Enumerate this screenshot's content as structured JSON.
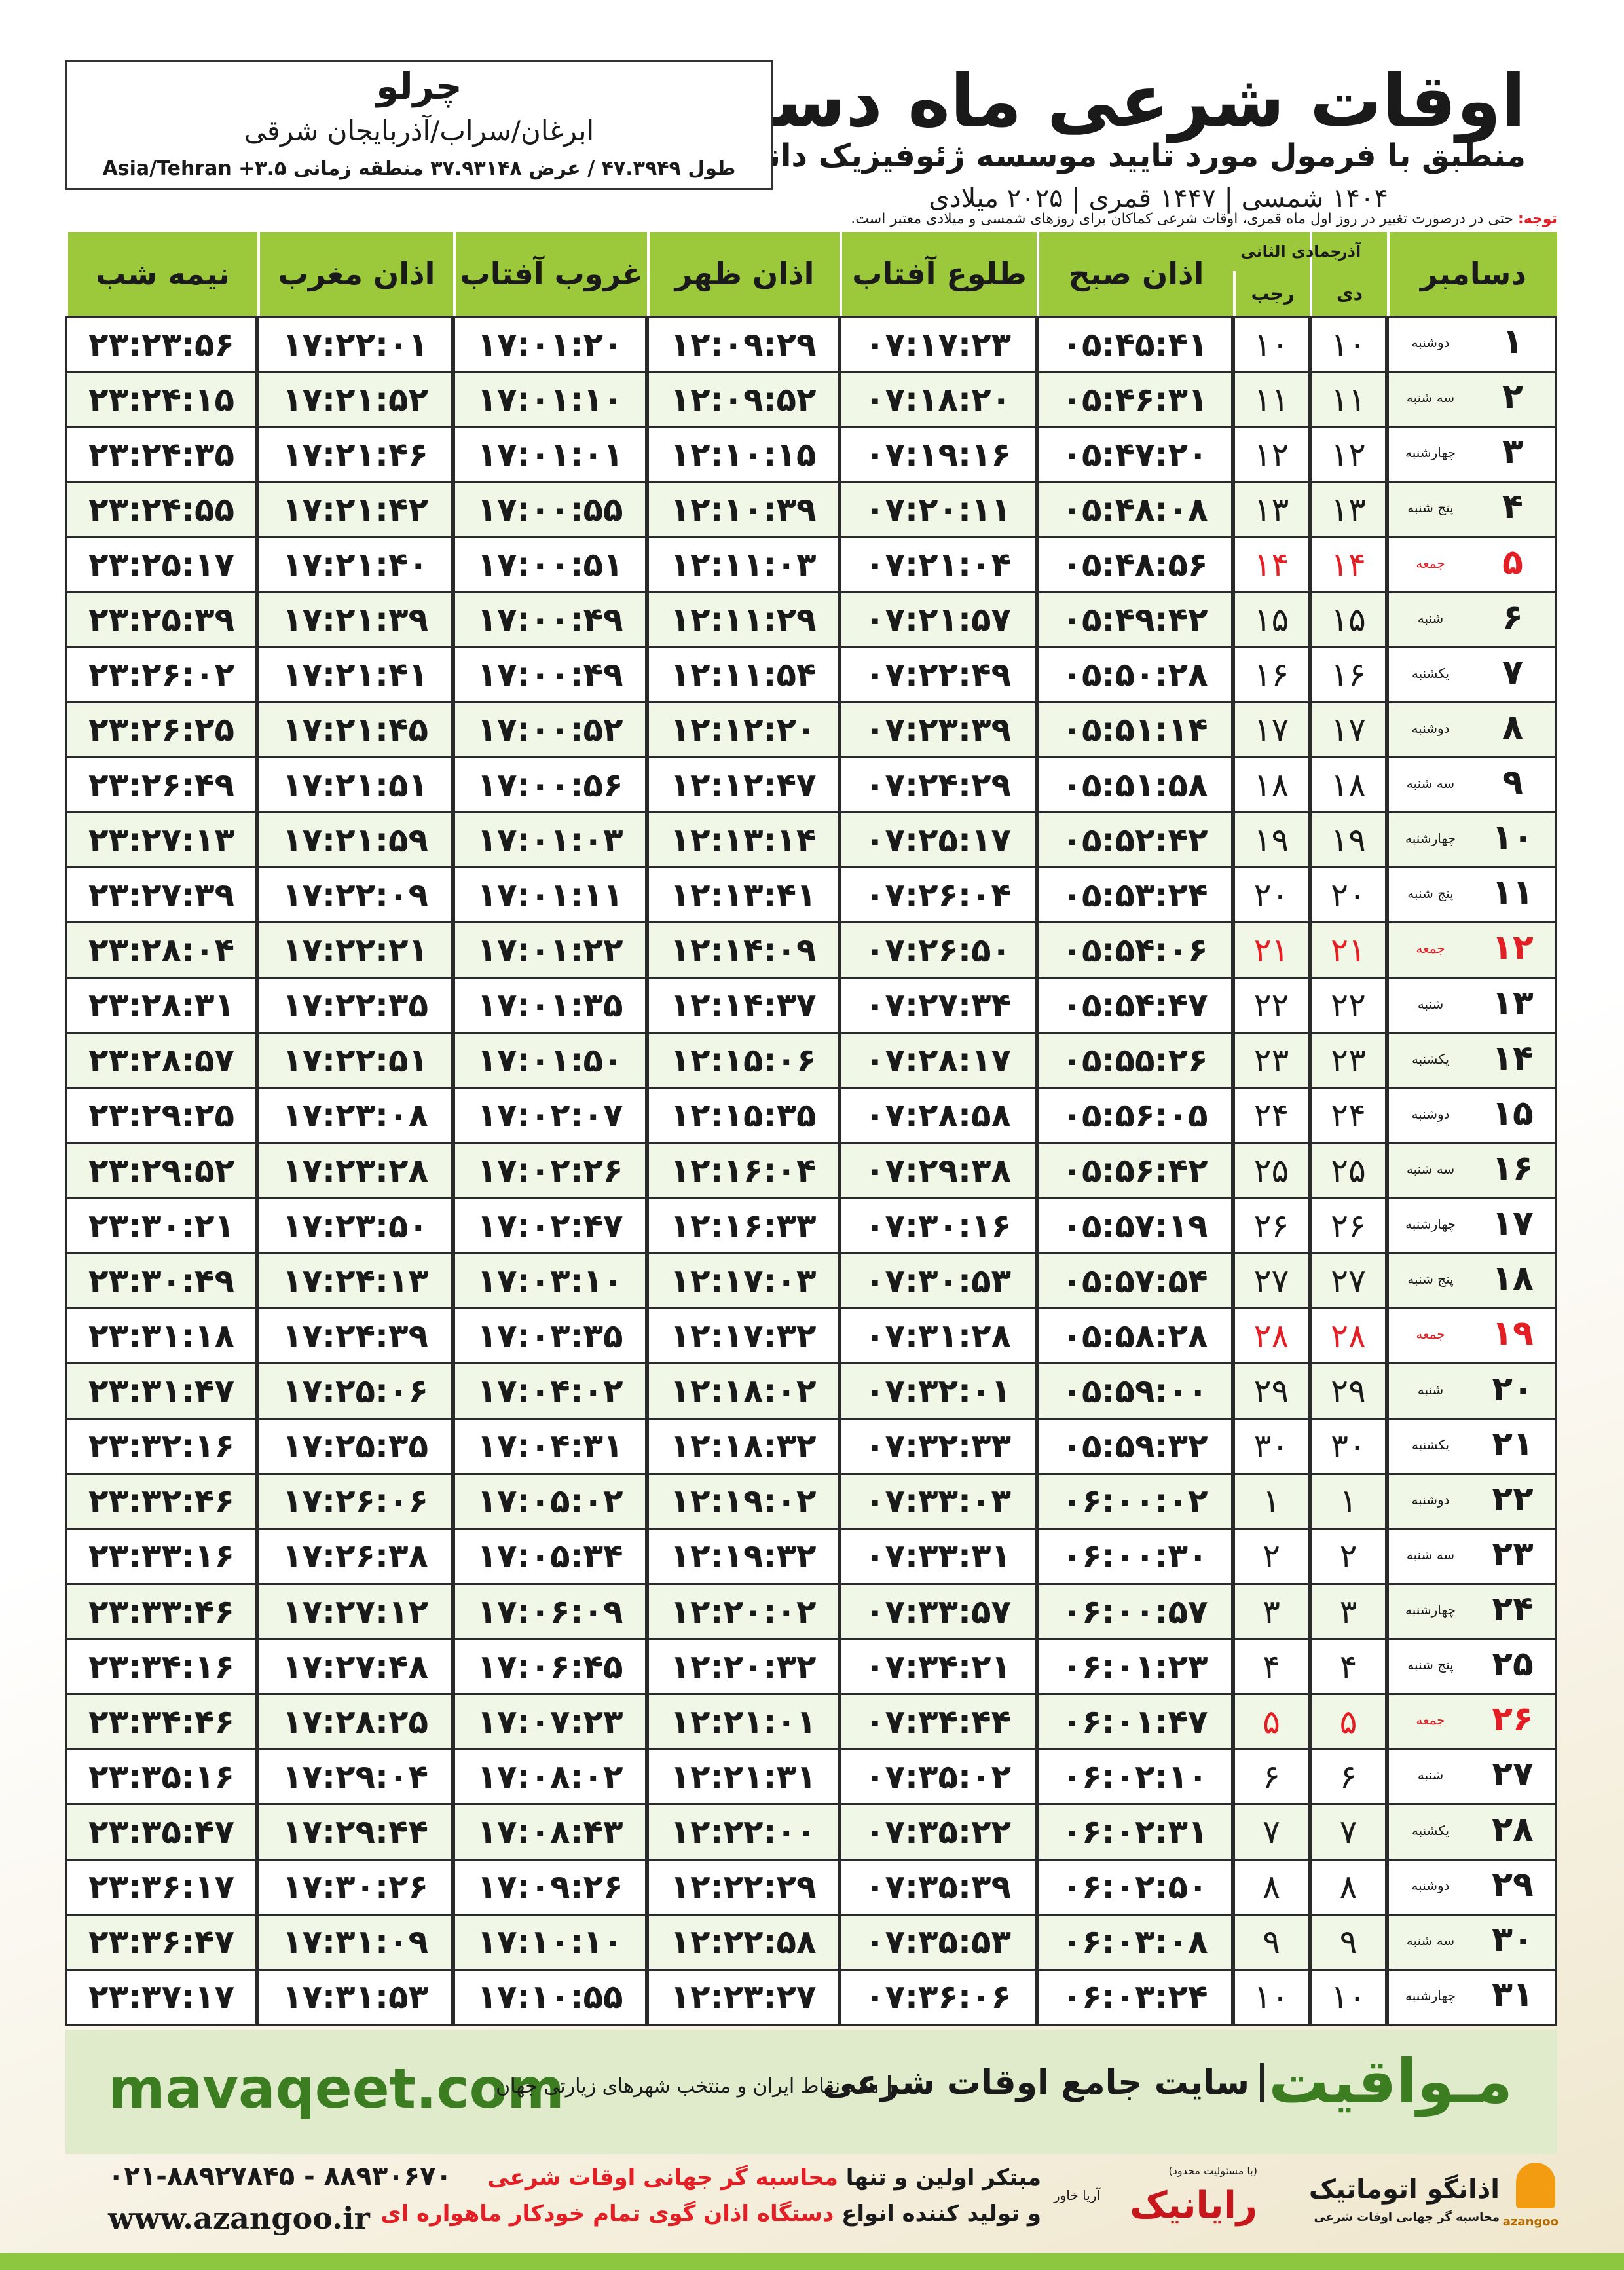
{
  "header": {
    "title": "اوقات شرعی ماه دسامبر",
    "subtitle": "منطبق با فرمول مورد تایید موسسه ژئوفیزیک دانشگاه تهران",
    "dates": "۱۴۰۴ شمسی | ۱۴۴۷ قمری | ۲۰۲۵ میلادی",
    "city": "چرلو",
    "region": "ابرغان/سراب/آذربایجان شرقی",
    "coords": "طول ۴۷.۳۹۴۹ / عرض ۳۷.۹۳۱۴۸ منطقه زمانی ۳.۵+ Asia/Tehran"
  },
  "note": {
    "label": "توجه:",
    "text": "حتی در درصورت تغییر در روز اول ماه قمری، اوقات شرعی کماکان برای روزهای شمسی و میلادی معتبر است."
  },
  "table": {
    "header_color": "#9cc83c",
    "holiday_color": "#e31e24",
    "columns": [
      "دسامبر",
      "آذر",
      "دی",
      "جمادی الثانی",
      "رجب",
      "اذان صبح",
      "طلوع آفتاب",
      "اذان ظهر",
      "غروب آفتاب",
      "اذان مغرب",
      "نیمه شب"
    ],
    "rows": [
      {
        "cells": [
          "۱",
          "دوشنبه",
          "۱۰",
          "۱۰",
          "۰۵:۴۵:۴۱",
          "۰۷:۱۷:۲۳",
          "۱۲:۰۹:۲۹",
          "۱۷:۰۱:۲۰",
          "۱۷:۲۲:۰۱",
          "۲۳:۲۳:۵۶"
        ]
      },
      {
        "cells": [
          "۲",
          "سه شنبه",
          "۱۱",
          "۱۱",
          "۰۵:۴۶:۳۱",
          "۰۷:۱۸:۲۰",
          "۱۲:۰۹:۵۲",
          "۱۷:۰۱:۱۰",
          "۱۷:۲۱:۵۲",
          "۲۳:۲۴:۱۵"
        ]
      },
      {
        "cells": [
          "۳",
          "چهارشنبه",
          "۱۲",
          "۱۲",
          "۰۵:۴۷:۲۰",
          "۰۷:۱۹:۱۶",
          "۱۲:۱۰:۱۵",
          "۱۷:۰۱:۰۱",
          "۱۷:۲۱:۴۶",
          "۲۳:۲۴:۳۵"
        ]
      },
      {
        "cells": [
          "۴",
          "پنج شنبه",
          "۱۳",
          "۱۳",
          "۰۵:۴۸:۰۸",
          "۰۷:۲۰:۱۱",
          "۱۲:۱۰:۳۹",
          "۱۷:۰۰:۵۵",
          "۱۷:۲۱:۴۲",
          "۲۳:۲۴:۵۵"
        ]
      },
      {
        "cells": [
          "۵",
          "جمعه",
          "۱۴",
          "۱۴",
          "۰۵:۴۸:۵۶",
          "۰۷:۲۱:۰۴",
          "۱۲:۱۱:۰۳",
          "۱۷:۰۰:۵۱",
          "۱۷:۲۱:۴۰",
          "۲۳:۲۵:۱۷"
        ],
        "holiday": true
      },
      {
        "cells": [
          "۶",
          "شنبه",
          "۱۵",
          "۱۵",
          "۰۵:۴۹:۴۲",
          "۰۷:۲۱:۵۷",
          "۱۲:۱۱:۲۹",
          "۱۷:۰۰:۴۹",
          "۱۷:۲۱:۳۹",
          "۲۳:۲۵:۳۹"
        ]
      },
      {
        "cells": [
          "۷",
          "یکشنبه",
          "۱۶",
          "۱۶",
          "۰۵:۵۰:۲۸",
          "۰۷:۲۲:۴۹",
          "۱۲:۱۱:۵۴",
          "۱۷:۰۰:۴۹",
          "۱۷:۲۱:۴۱",
          "۲۳:۲۶:۰۲"
        ]
      },
      {
        "cells": [
          "۸",
          "دوشنبه",
          "۱۷",
          "۱۷",
          "۰۵:۵۱:۱۴",
          "۰۷:۲۳:۳۹",
          "۱۲:۱۲:۲۰",
          "۱۷:۰۰:۵۲",
          "۱۷:۲۱:۴۵",
          "۲۳:۲۶:۲۵"
        ]
      },
      {
        "cells": [
          "۹",
          "سه شنبه",
          "۱۸",
          "۱۸",
          "۰۵:۵۱:۵۸",
          "۰۷:۲۴:۲۹",
          "۱۲:۱۲:۴۷",
          "۱۷:۰۰:۵۶",
          "۱۷:۲۱:۵۱",
          "۲۳:۲۶:۴۹"
        ]
      },
      {
        "cells": [
          "۱۰",
          "چهارشنبه",
          "۱۹",
          "۱۹",
          "۰۵:۵۲:۴۲",
          "۰۷:۲۵:۱۷",
          "۱۲:۱۳:۱۴",
          "۱۷:۰۱:۰۳",
          "۱۷:۲۱:۵۹",
          "۲۳:۲۷:۱۳"
        ]
      },
      {
        "cells": [
          "۱۱",
          "پنج شنبه",
          "۲۰",
          "۲۰",
          "۰۵:۵۳:۲۴",
          "۰۷:۲۶:۰۴",
          "۱۲:۱۳:۴۱",
          "۱۷:۰۱:۱۱",
          "۱۷:۲۲:۰۹",
          "۲۳:۲۷:۳۹"
        ]
      },
      {
        "cells": [
          "۱۲",
          "جمعه",
          "۲۱",
          "۲۱",
          "۰۵:۵۴:۰۶",
          "۰۷:۲۶:۵۰",
          "۱۲:۱۴:۰۹",
          "۱۷:۰۱:۲۲",
          "۱۷:۲۲:۲۱",
          "۲۳:۲۸:۰۴"
        ],
        "holiday": true
      },
      {
        "cells": [
          "۱۳",
          "شنبه",
          "۲۲",
          "۲۲",
          "۰۵:۵۴:۴۷",
          "۰۷:۲۷:۳۴",
          "۱۲:۱۴:۳۷",
          "۱۷:۰۱:۳۵",
          "۱۷:۲۲:۳۵",
          "۲۳:۲۸:۳۱"
        ]
      },
      {
        "cells": [
          "۱۴",
          "یکشنبه",
          "۲۳",
          "۲۳",
          "۰۵:۵۵:۲۶",
          "۰۷:۲۸:۱۷",
          "۱۲:۱۵:۰۶",
          "۱۷:۰۱:۵۰",
          "۱۷:۲۲:۵۱",
          "۲۳:۲۸:۵۷"
        ]
      },
      {
        "cells": [
          "۱۵",
          "دوشنبه",
          "۲۴",
          "۲۴",
          "۰۵:۵۶:۰۵",
          "۰۷:۲۸:۵۸",
          "۱۲:۱۵:۳۵",
          "۱۷:۰۲:۰۷",
          "۱۷:۲۳:۰۸",
          "۲۳:۲۹:۲۵"
        ]
      },
      {
        "cells": [
          "۱۶",
          "سه شنبه",
          "۲۵",
          "۲۵",
          "۰۵:۵۶:۴۲",
          "۰۷:۲۹:۳۸",
          "۱۲:۱۶:۰۴",
          "۱۷:۰۲:۲۶",
          "۱۷:۲۳:۲۸",
          "۲۳:۲۹:۵۲"
        ]
      },
      {
        "cells": [
          "۱۷",
          "چهارشنبه",
          "۲۶",
          "۲۶",
          "۰۵:۵۷:۱۹",
          "۰۷:۳۰:۱۶",
          "۱۲:۱۶:۳۳",
          "۱۷:۰۲:۴۷",
          "۱۷:۲۳:۵۰",
          "۲۳:۳۰:۲۱"
        ]
      },
      {
        "cells": [
          "۱۸",
          "پنج شنبه",
          "۲۷",
          "۲۷",
          "۰۵:۵۷:۵۴",
          "۰۷:۳۰:۵۳",
          "۱۲:۱۷:۰۳",
          "۱۷:۰۳:۱۰",
          "۱۷:۲۴:۱۳",
          "۲۳:۳۰:۴۹"
        ]
      },
      {
        "cells": [
          "۱۹",
          "جمعه",
          "۲۸",
          "۲۸",
          "۰۵:۵۸:۲۸",
          "۰۷:۳۱:۲۸",
          "۱۲:۱۷:۳۲",
          "۱۷:۰۳:۳۵",
          "۱۷:۲۴:۳۹",
          "۲۳:۳۱:۱۸"
        ],
        "holiday": true
      },
      {
        "cells": [
          "۲۰",
          "شنبه",
          "۲۹",
          "۲۹",
          "۰۵:۵۹:۰۰",
          "۰۷:۳۲:۰۱",
          "۱۲:۱۸:۰۲",
          "۱۷:۰۴:۰۲",
          "۱۷:۲۵:۰۶",
          "۲۳:۳۱:۴۷"
        ]
      },
      {
        "cells": [
          "۲۱",
          "یکشنبه",
          "۳۰",
          "۳۰",
          "۰۵:۵۹:۳۲",
          "۰۷:۳۲:۳۳",
          "۱۲:۱۸:۳۲",
          "۱۷:۰۴:۳۱",
          "۱۷:۲۵:۳۵",
          "۲۳:۳۲:۱۶"
        ]
      },
      {
        "cells": [
          "۲۲",
          "دوشنبه",
          "۱",
          "۱",
          "۰۶:۰۰:۰۲",
          "۰۷:۳۳:۰۳",
          "۱۲:۱۹:۰۲",
          "۱۷:۰۵:۰۲",
          "۱۷:۲۶:۰۶",
          "۲۳:۳۲:۴۶"
        ]
      },
      {
        "cells": [
          "۲۳",
          "سه شنبه",
          "۲",
          "۲",
          "۰۶:۰۰:۳۰",
          "۰۷:۳۳:۳۱",
          "۱۲:۱۹:۳۲",
          "۱۷:۰۵:۳۴",
          "۱۷:۲۶:۳۸",
          "۲۳:۳۳:۱۶"
        ]
      },
      {
        "cells": [
          "۲۴",
          "چهارشنبه",
          "۳",
          "۳",
          "۰۶:۰۰:۵۷",
          "۰۷:۳۳:۵۷",
          "۱۲:۲۰:۰۲",
          "۱۷:۰۶:۰۹",
          "۱۷:۲۷:۱۲",
          "۲۳:۳۳:۴۶"
        ]
      },
      {
        "cells": [
          "۲۵",
          "پنج شنبه",
          "۴",
          "۴",
          "۰۶:۰۱:۲۳",
          "۰۷:۳۴:۲۱",
          "۱۲:۲۰:۳۲",
          "۱۷:۰۶:۴۵",
          "۱۷:۲۷:۴۸",
          "۲۳:۳۴:۱۶"
        ]
      },
      {
        "cells": [
          "۲۶",
          "جمعه",
          "۵",
          "۵",
          "۰۶:۰۱:۴۷",
          "۰۷:۳۴:۴۴",
          "۱۲:۲۱:۰۱",
          "۱۷:۰۷:۲۳",
          "۱۷:۲۸:۲۵",
          "۲۳:۳۴:۴۶"
        ],
        "holiday": true
      },
      {
        "cells": [
          "۲۷",
          "شنبه",
          "۶",
          "۶",
          "۰۶:۰۲:۱۰",
          "۰۷:۳۵:۰۲",
          "۱۲:۲۱:۳۱",
          "۱۷:۰۸:۰۲",
          "۱۷:۲۹:۰۴",
          "۲۳:۳۵:۱۶"
        ]
      },
      {
        "cells": [
          "۲۸",
          "یکشنبه",
          "۷",
          "۷",
          "۰۶:۰۲:۳۱",
          "۰۷:۳۵:۲۲",
          "۱۲:۲۲:۰۰",
          "۱۷:۰۸:۴۳",
          "۱۷:۲۹:۴۴",
          "۲۳:۳۵:۴۷"
        ]
      },
      {
        "cells": [
          "۲۹",
          "دوشنبه",
          "۸",
          "۸",
          "۰۶:۰۲:۵۰",
          "۰۷:۳۵:۳۹",
          "۱۲:۲۲:۲۹",
          "۱۷:۰۹:۲۶",
          "۱۷:۳۰:۲۶",
          "۲۳:۳۶:۱۷"
        ]
      },
      {
        "cells": [
          "۳۰",
          "سه شنبه",
          "۹",
          "۹",
          "۰۶:۰۳:۰۸",
          "۰۷:۳۵:۵۳",
          "۱۲:۲۲:۵۸",
          "۱۷:۱۰:۱۰",
          "۱۷:۳۱:۰۹",
          "۲۳:۳۶:۴۷"
        ]
      },
      {
        "cells": [
          "۳۱",
          "چهارشنبه",
          "۱۰",
          "۱۰",
          "۰۶:۰۳:۲۴",
          "۰۷:۳۶:۰۶",
          "۱۲:۲۳:۲۷",
          "۱۷:۱۰:۵۵",
          "۱۷:۳۱:۵۳",
          "۲۳:۳۷:۱۷"
        ]
      }
    ]
  },
  "footer": {
    "site": "mavaqeet.com",
    "brand": "مـواقیت",
    "slogan": "سایت جامع اوقات شرعی",
    "coverage": "همه نقاط ایران و منتخب شهرهای زیارتی جهان",
    "phone": "۰۲۱-۸۸۹۲۷۸۴۵ - ۸۸۹۳۰۶۷۰",
    "url": "www.azangoo.ir",
    "line1_a": "مبتکر اولین و تنها",
    "line1_b": "محاسبه گر جهانی اوقات شرعی",
    "line2_a": "و تولید کننده انواع",
    "line2_b": "دستگاه اذان گوی تمام خودکار ماهواره ای",
    "company": "رایانیک",
    "company_sub": "آریا خاور",
    "company_note": "(با مسئولیت محدود)",
    "logo": "اذانگو اتوماتیک",
    "logo_sub": "محاسبه گر جهانی اوقات شرعی",
    "logo_en": "azangoo"
  }
}
